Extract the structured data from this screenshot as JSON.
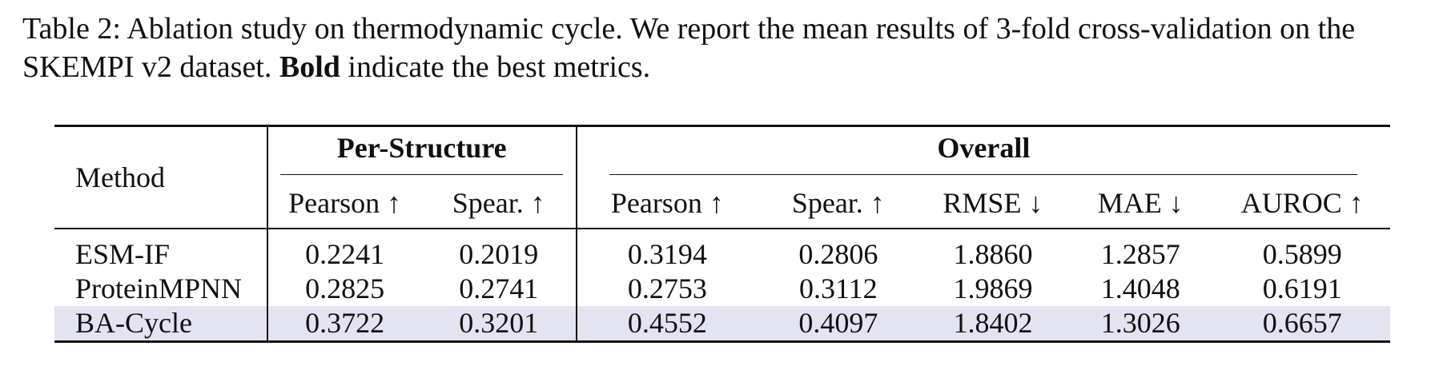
{
  "caption": {
    "lead": "Table 2: Ablation study on thermodynamic cycle. We report the mean results of 3-fold cross-validation on the SKEMPI v2 dataset.",
    "bold_word": "Bold",
    "tail": "indicate the best metrics."
  },
  "table": {
    "method_header": "Method",
    "groups": [
      {
        "label": "Per-Structure",
        "span": 2
      },
      {
        "label": "Overall",
        "span": 5
      }
    ],
    "columns": [
      "Pearson ↑",
      "Spear. ↑",
      "Pearson ↑",
      "Spear. ↑",
      "RMSE ↓",
      "MAE ↓",
      "AUROC ↑"
    ],
    "rows": [
      {
        "method": "ESM-IF",
        "values": [
          "0.2241",
          "0.2019",
          "0.3194",
          "0.2806",
          "1.8860",
          "1.2857",
          "0.5899"
        ],
        "bold": [
          false,
          false,
          false,
          false,
          false,
          true,
          false
        ],
        "highlight": false
      },
      {
        "method": "ProteinMPNN",
        "values": [
          "0.2825",
          "0.2741",
          "0.2753",
          "0.3112",
          "1.9869",
          "1.4048",
          "0.6191"
        ],
        "bold": [
          false,
          false,
          false,
          false,
          false,
          false,
          false
        ],
        "highlight": false
      },
      {
        "method": "BA-Cycle",
        "values": [
          "0.3722",
          "0.3201",
          "0.4552",
          "0.4097",
          "1.8402",
          "1.3026",
          "0.6657"
        ],
        "bold": [
          true,
          true,
          true,
          true,
          true,
          false,
          true
        ],
        "highlight": true
      }
    ],
    "highlight_color": "#e4e3f1"
  }
}
